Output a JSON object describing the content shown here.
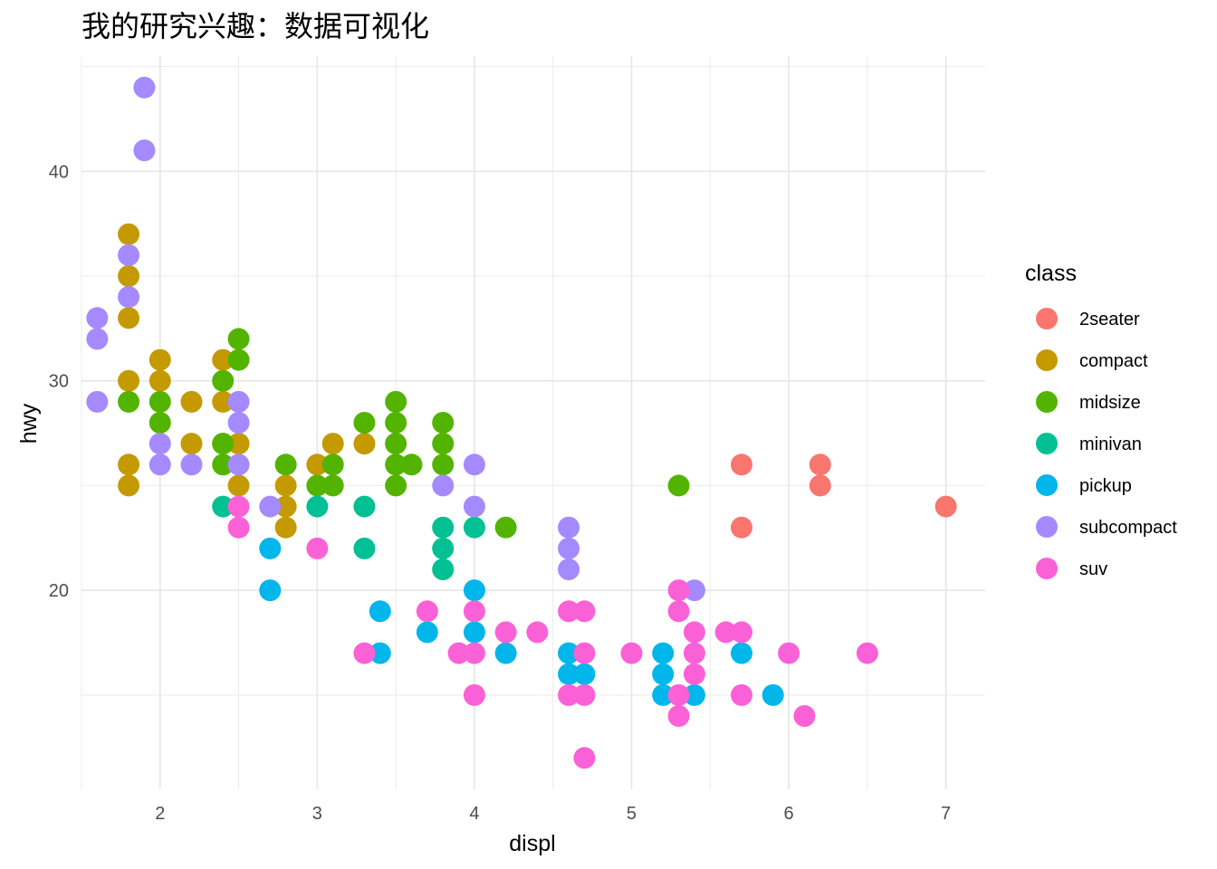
{
  "chart_data": {
    "type": "scatter",
    "title": "我的研究兴趣：数据可视化",
    "xlabel": "displ",
    "ylabel": "hwy",
    "xlim": [
      1.5,
      7.25
    ],
    "ylim": [
      10.5,
      45.5
    ],
    "x_ticks": [
      2,
      3,
      4,
      5,
      6,
      7
    ],
    "y_ticks": [
      20,
      30,
      40
    ],
    "grid": true,
    "legend": {
      "title": "class",
      "position": "right"
    },
    "series": [
      {
        "name": "2seater",
        "color": "#F8766D",
        "points": [
          [
            5.7,
            26
          ],
          [
            5.7,
            23
          ],
          [
            6.2,
            26
          ],
          [
            6.2,
            25
          ],
          [
            7.0,
            24
          ]
        ]
      },
      {
        "name": "compact",
        "color": "#C49A00",
        "points": [
          [
            1.8,
            37
          ],
          [
            1.8,
            35
          ],
          [
            1.8,
            33
          ],
          [
            1.8,
            30
          ],
          [
            1.8,
            26
          ],
          [
            1.8,
            25
          ],
          [
            2.0,
            31
          ],
          [
            2.0,
            30
          ],
          [
            2.2,
            29
          ],
          [
            2.2,
            27
          ],
          [
            2.4,
            31
          ],
          [
            2.4,
            29
          ],
          [
            2.4,
            27
          ],
          [
            2.5,
            27
          ],
          [
            2.5,
            25
          ],
          [
            2.8,
            25
          ],
          [
            2.8,
            24
          ],
          [
            2.8,
            23
          ],
          [
            3.0,
            26
          ],
          [
            3.1,
            27
          ],
          [
            3.3,
            27
          ]
        ]
      },
      {
        "name": "midsize",
        "color": "#53B400",
        "points": [
          [
            1.8,
            29
          ],
          [
            2.0,
            29
          ],
          [
            2.0,
            28
          ],
          [
            2.4,
            30
          ],
          [
            2.4,
            27
          ],
          [
            2.4,
            26
          ],
          [
            2.5,
            32
          ],
          [
            2.5,
            31
          ],
          [
            2.8,
            26
          ],
          [
            3.0,
            25
          ],
          [
            3.1,
            26
          ],
          [
            3.1,
            25
          ],
          [
            3.3,
            28
          ],
          [
            3.5,
            29
          ],
          [
            3.5,
            28
          ],
          [
            3.5,
            27
          ],
          [
            3.5,
            26
          ],
          [
            3.5,
            25
          ],
          [
            3.6,
            26
          ],
          [
            3.8,
            28
          ],
          [
            3.8,
            27
          ],
          [
            3.8,
            26
          ],
          [
            4.2,
            23
          ],
          [
            5.3,
            25
          ]
        ]
      },
      {
        "name": "minivan",
        "color": "#00C094",
        "points": [
          [
            2.4,
            24
          ],
          [
            3.0,
            24
          ],
          [
            3.3,
            24
          ],
          [
            3.3,
            22
          ],
          [
            3.8,
            23
          ],
          [
            3.8,
            22
          ],
          [
            3.8,
            21
          ],
          [
            4.0,
            23
          ]
        ]
      },
      {
        "name": "pickup",
        "color": "#00B6EB",
        "points": [
          [
            2.7,
            22
          ],
          [
            2.7,
            20
          ],
          [
            3.4,
            19
          ],
          [
            3.4,
            17
          ],
          [
            3.7,
            18
          ],
          [
            4.0,
            20
          ],
          [
            4.0,
            18
          ],
          [
            4.2,
            17
          ],
          [
            4.6,
            17
          ],
          [
            4.6,
            16
          ],
          [
            4.7,
            16
          ],
          [
            5.2,
            17
          ],
          [
            5.2,
            16
          ],
          [
            5.2,
            15
          ],
          [
            5.4,
            15
          ],
          [
            5.7,
            17
          ],
          [
            5.9,
            15
          ]
        ]
      },
      {
        "name": "subcompact",
        "color": "#A58AFF",
        "points": [
          [
            1.6,
            33
          ],
          [
            1.6,
            32
          ],
          [
            1.6,
            29
          ],
          [
            1.8,
            36
          ],
          [
            1.8,
            34
          ],
          [
            1.9,
            44
          ],
          [
            1.9,
            41
          ],
          [
            2.0,
            27
          ],
          [
            2.0,
            26
          ],
          [
            2.2,
            26
          ],
          [
            2.5,
            29
          ],
          [
            2.5,
            28
          ],
          [
            2.5,
            26
          ],
          [
            2.7,
            24
          ],
          [
            3.8,
            25
          ],
          [
            4.0,
            26
          ],
          [
            4.0,
            24
          ],
          [
            4.6,
            23
          ],
          [
            4.6,
            22
          ],
          [
            4.6,
            21
          ],
          [
            5.4,
            20
          ]
        ]
      },
      {
        "name": "suv",
        "color": "#FB61D7",
        "points": [
          [
            2.5,
            24
          ],
          [
            2.5,
            23
          ],
          [
            3.0,
            22
          ],
          [
            3.3,
            17
          ],
          [
            3.7,
            19
          ],
          [
            3.9,
            17
          ],
          [
            4.0,
            19
          ],
          [
            4.0,
            17
          ],
          [
            4.0,
            15
          ],
          [
            4.2,
            18
          ],
          [
            4.4,
            18
          ],
          [
            4.6,
            19
          ],
          [
            4.6,
            15
          ],
          [
            4.7,
            19
          ],
          [
            4.7,
            17
          ],
          [
            4.7,
            15
          ],
          [
            4.7,
            12
          ],
          [
            5.0,
            17
          ],
          [
            5.3,
            20
          ],
          [
            5.3,
            19
          ],
          [
            5.3,
            15
          ],
          [
            5.3,
            14
          ],
          [
            5.4,
            18
          ],
          [
            5.4,
            17
          ],
          [
            5.4,
            16
          ],
          [
            5.6,
            18
          ],
          [
            5.7,
            18
          ],
          [
            5.7,
            15
          ],
          [
            6.0,
            17
          ],
          [
            6.1,
            14
          ],
          [
            6.5,
            17
          ]
        ]
      }
    ]
  }
}
